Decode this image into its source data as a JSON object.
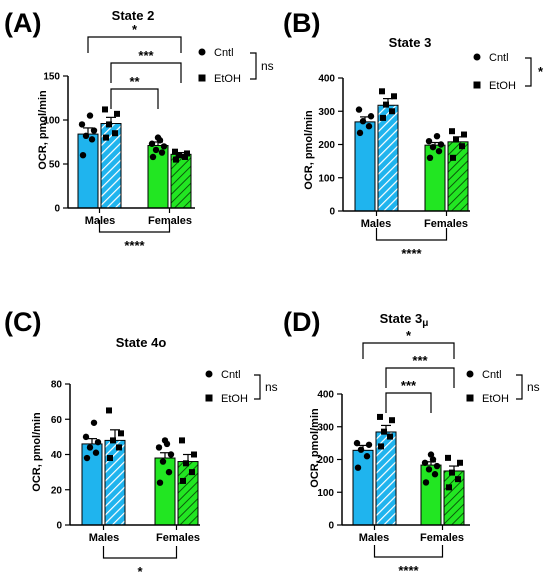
{
  "style": {
    "male_color": "#1fb4ee",
    "female_color": "#22e622",
    "dot_color": "#000000",
    "hatch": "diagonal-stripes"
  },
  "legend_icons": {
    "cntl": "filled-circle",
    "etoh": "filled-square"
  },
  "chart_data": [
    {
      "panel": "(A)",
      "type": "bar",
      "title": "State 2",
      "title_sub": "",
      "ylabel": "OCR, pmol/min",
      "ylim": [
        0,
        150
      ],
      "yticks": [
        "0",
        "50",
        "100",
        "150"
      ],
      "categories": [
        "Males",
        "Females"
      ],
      "series": [
        {
          "name": "Cntl",
          "values": [
            84,
            71
          ],
          "errors": [
            7,
            4
          ],
          "points": [
            [
              60,
              78,
              82,
              88,
              95,
              105
            ],
            [
              58,
              63,
              66,
              70,
              73,
              77,
              80
            ]
          ]
        },
        {
          "name": "EtOH",
          "values": [
            96,
            61
          ],
          "errors": [
            7,
            2
          ],
          "points": [
            [
              80,
              85,
              95,
              107,
              112
            ],
            [
              55,
              58,
              60,
              62,
              64
            ]
          ]
        }
      ],
      "brackets": [
        {
          "from": [
            0,
            0
          ],
          "to": [
            1,
            1
          ],
          "label": "*"
        },
        {
          "from": [
            0,
            1
          ],
          "to": [
            1,
            1
          ],
          "label": "***"
        },
        {
          "from": [
            0,
            1
          ],
          "to": [
            1,
            0
          ],
          "label": "**"
        }
      ],
      "bottom_bracket": "****",
      "legend_ns": "ns"
    },
    {
      "panel": "(B)",
      "type": "bar",
      "title": "State 3",
      "title_sub": "",
      "ylabel": "OCR, pmol/min",
      "ylim": [
        0,
        400
      ],
      "yticks": [
        "0",
        "100",
        "200",
        "300",
        "400"
      ],
      "categories": [
        "Males",
        "Females"
      ],
      "series": [
        {
          "name": "Cntl",
          "values": [
            268,
            198
          ],
          "errors": [
            15,
            8
          ],
          "points": [
            [
              235,
              255,
              270,
              285,
              305
            ],
            [
              160,
              180,
              192,
              200,
              210,
              225
            ]
          ]
        },
        {
          "name": "EtOH",
          "values": [
            318,
            208
          ],
          "errors": [
            20,
            15
          ],
          "points": [
            [
              280,
              300,
              320,
              345,
              360
            ],
            [
              160,
              195,
              215,
              230,
              240
            ]
          ]
        }
      ],
      "brackets": [],
      "bottom_bracket": "****",
      "legend_ns": "*"
    },
    {
      "panel": "(C)",
      "type": "bar",
      "title": "State 4o",
      "title_sub": "",
      "ylabel": "OCR, pmol/min",
      "ylim": [
        0,
        80
      ],
      "yticks": [
        "0",
        "20",
        "40",
        "60",
        "80"
      ],
      "categories": [
        "Males",
        "Females"
      ],
      "series": [
        {
          "name": "Cntl",
          "values": [
            46,
            38
          ],
          "errors": [
            3,
            3
          ],
          "points": [
            [
              38,
              41,
              44,
              47,
              50,
              58
            ],
            [
              24,
              30,
              36,
              40,
              44,
              46,
              48
            ]
          ]
        },
        {
          "name": "EtOH",
          "values": [
            48,
            36
          ],
          "errors": [
            6,
            4
          ],
          "points": [
            [
              38,
              44,
              48,
              52,
              65
            ],
            [
              25,
              30,
              35,
              40,
              48
            ]
          ]
        }
      ],
      "brackets": [],
      "bottom_bracket": "*",
      "legend_ns": "ns"
    },
    {
      "panel": "(D)",
      "type": "bar",
      "title": "State 3",
      "title_sub": "μ",
      "ylabel": "OCR, pmol/min",
      "ylim": [
        0,
        400
      ],
      "yticks": [
        "0",
        "100",
        "200",
        "300",
        "400"
      ],
      "categories": [
        "Males",
        "Females"
      ],
      "series": [
        {
          "name": "Cntl",
          "values": [
            228,
            183
          ],
          "errors": [
            15,
            10
          ],
          "points": [
            [
              175,
              210,
              230,
              245,
              250
            ],
            [
              130,
              155,
              170,
              180,
              190,
              200,
              215
            ]
          ]
        },
        {
          "name": "EtOH",
          "values": [
            284,
            165
          ],
          "errors": [
            20,
            15
          ],
          "points": [
            [
              240,
              270,
              285,
              320,
              330
            ],
            [
              115,
              140,
              160,
              190,
              205
            ]
          ]
        }
      ],
      "brackets": [
        {
          "from": [
            0,
            0
          ],
          "to": [
            1,
            1
          ],
          "label": "*"
        },
        {
          "from": [
            0,
            1
          ],
          "to": [
            1,
            1
          ],
          "label": "***"
        },
        {
          "from": [
            0,
            1
          ],
          "to": [
            1,
            0
          ],
          "label": "***"
        }
      ],
      "bottom_bracket": "****",
      "legend_ns": "ns"
    }
  ]
}
